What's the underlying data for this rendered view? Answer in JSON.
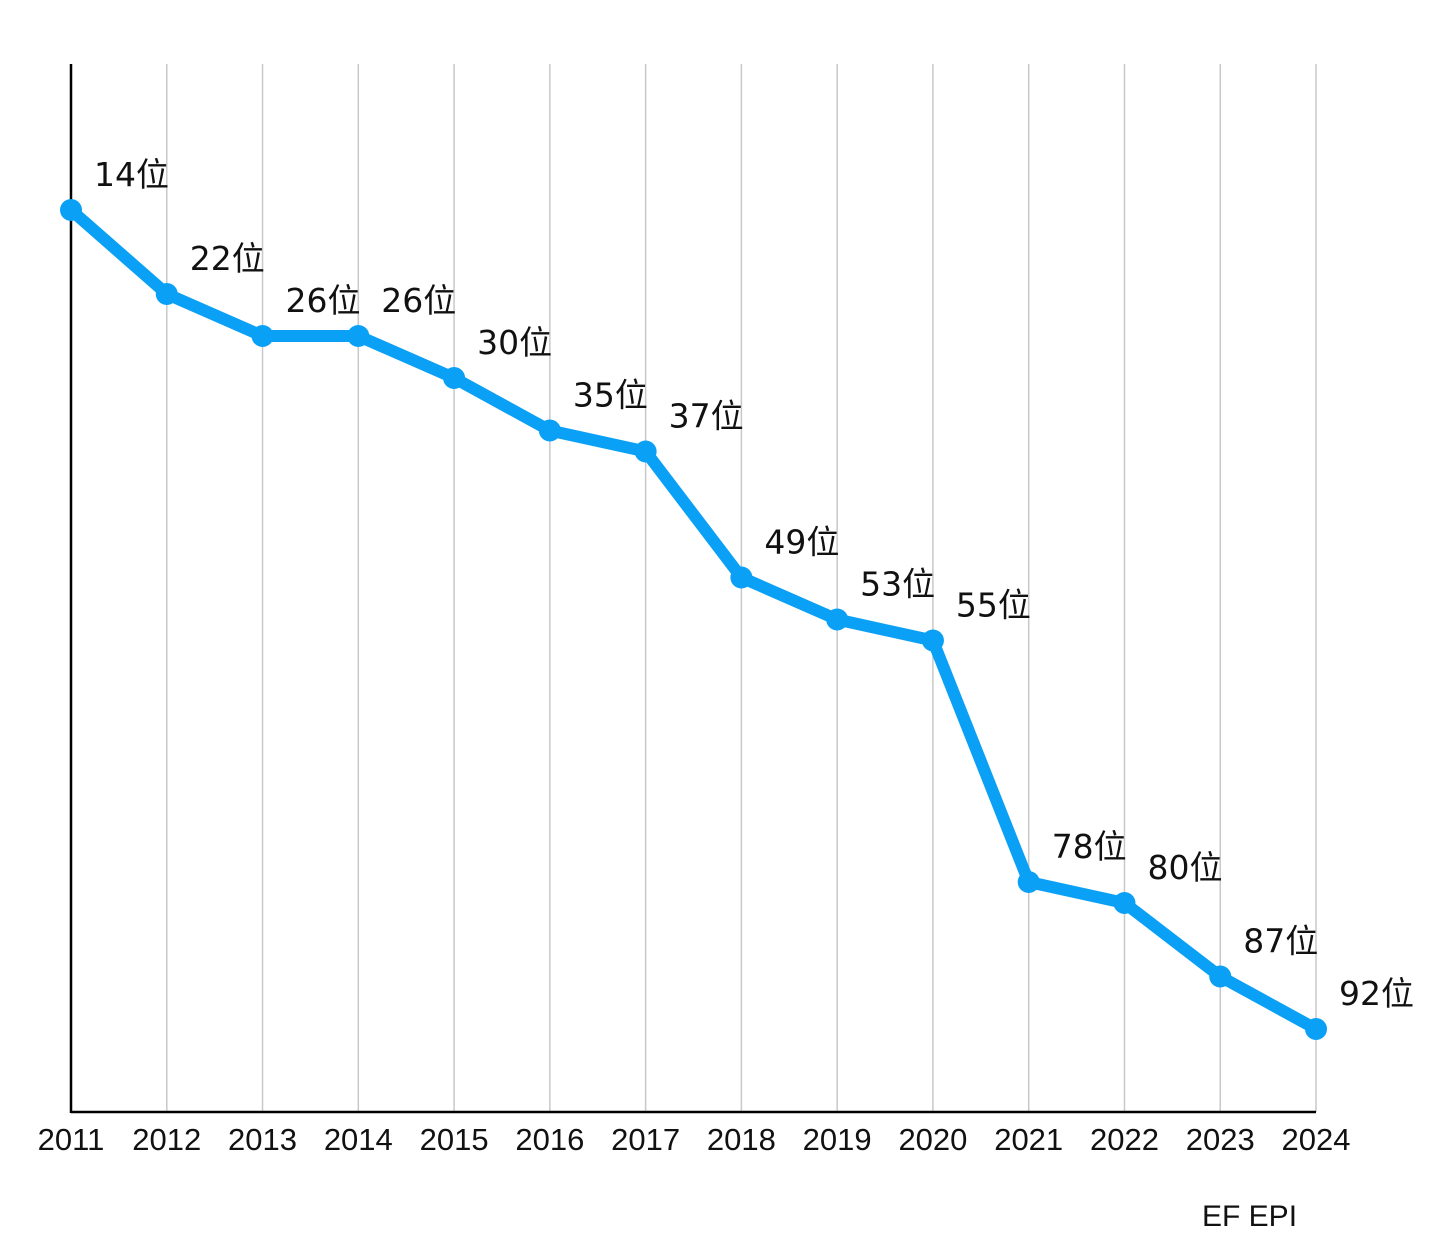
{
  "chart_data": {
    "type": "line",
    "x": [
      "2011",
      "2012",
      "2013",
      "2014",
      "2015",
      "2016",
      "2017",
      "2018",
      "2019",
      "2020",
      "2021",
      "2022",
      "2023",
      "2024"
    ],
    "series": [
      {
        "values": [
          14,
          22,
          26,
          26,
          30,
          35,
          37,
          49,
          53,
          55,
          78,
          80,
          87,
          92
        ],
        "labels": [
          "14位",
          "22位",
          "26位",
          "26位",
          "30位",
          "35位",
          "37位",
          "49位",
          "53位",
          "55位",
          "78位",
          "80位",
          "87位",
          "92位"
        ],
        "color": "#0aa0f5"
      }
    ],
    "y_inverted": true,
    "ylim": [
      0,
      100
    ],
    "grid": "vertical",
    "grid_color": "#c8c8c8",
    "axis_color": "#000000",
    "source": "EF EPI"
  }
}
